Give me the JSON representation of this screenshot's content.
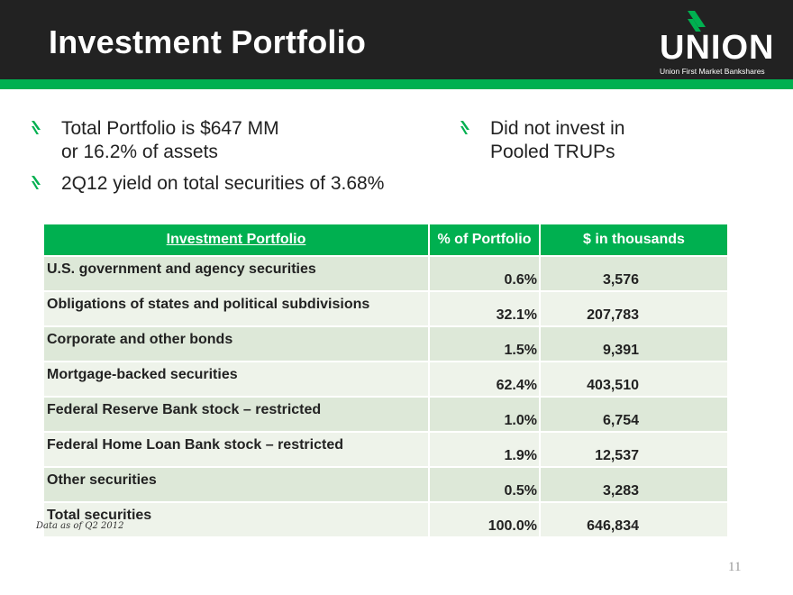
{
  "header": {
    "title": "Investment Portfolio"
  },
  "logo": {
    "word": "UNION",
    "subtitle": "Union First Market Bankshares"
  },
  "colors": {
    "header_bg": "#222222",
    "accent_green": "#00b050",
    "row_dark": "#dde8d8",
    "row_light": "#eef3ea"
  },
  "bullets_left": [
    {
      "line1": "Total Portfolio is $647 MM",
      "line2": "or 16.2% of assets"
    },
    {
      "line1": "2Q12 yield on total securities of 3.68%"
    }
  ],
  "bullets_right": [
    {
      "line1": "Did not invest in",
      "line2": "Pooled TRUPs"
    }
  ],
  "table": {
    "headers": [
      "Investment Portfolio",
      "% of Portfolio",
      "$ in thousands"
    ],
    "rows": [
      {
        "label": "U.S. government and agency securities",
        "pct": "0.6%",
        "amount": "3,576"
      },
      {
        "label": "Obligations of states and political subdivisions",
        "pct": "32.1%",
        "amount": "207,783"
      },
      {
        "label": "Corporate and other bonds",
        "pct": "1.5%",
        "amount": "9,391"
      },
      {
        "label": "Mortgage-backed securities",
        "pct": "62.4%",
        "amount": "403,510"
      },
      {
        "label": "Federal Reserve Bank stock – restricted",
        "pct": "1.0%",
        "amount": "6,754"
      },
      {
        "label": "Federal Home Loan Bank stock – restricted",
        "pct": "1.9%",
        "amount": "12,537"
      },
      {
        "label": "Other securities",
        "pct": "0.5%",
        "amount": "3,283"
      },
      {
        "label": "Total securities",
        "pct": "100.0%",
        "amount": "646,834"
      }
    ]
  },
  "footnote": "Data as of Q2 2012",
  "page_number": "11"
}
